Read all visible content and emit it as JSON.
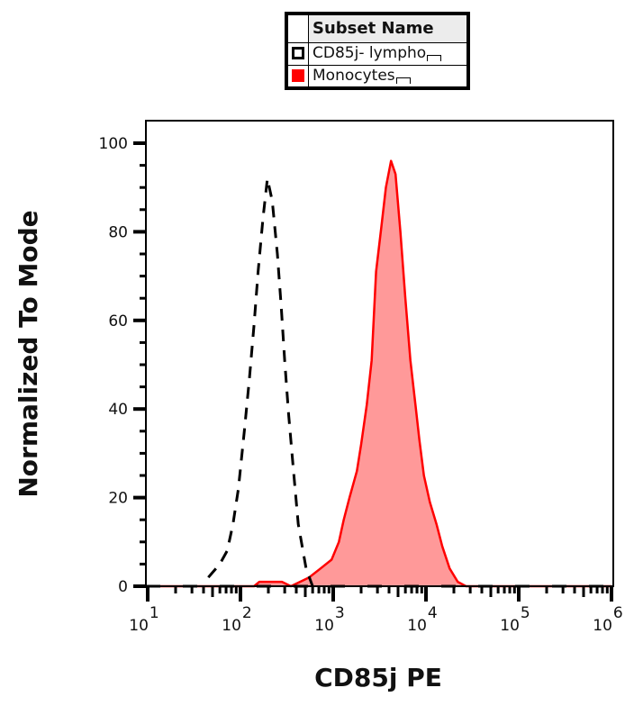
{
  "legend": {
    "header": "Subset Name",
    "items": [
      {
        "label": "CD85j- lympho",
        "swatch": "hollow-black",
        "color": "#000000"
      },
      {
        "label": "Monocytes",
        "swatch": "solid-red",
        "color": "#ff0000"
      }
    ]
  },
  "axes": {
    "xlabel": "CD85j PE",
    "ylabel": "Normalized To Mode",
    "x_ticks": [
      {
        "base": "10",
        "exp": "1"
      },
      {
        "base": "10",
        "exp": "2"
      },
      {
        "base": "10",
        "exp": "3"
      },
      {
        "base": "10",
        "exp": "4"
      },
      {
        "base": "10",
        "exp": "5"
      },
      {
        "base": "10",
        "exp": "6"
      }
    ],
    "y_ticks": [
      "0",
      "20",
      "40",
      "60",
      "80",
      "100"
    ]
  },
  "colors": {
    "monocytes_line": "#ff0000",
    "monocytes_fill": "#ff9999",
    "lympho_line": "#000000"
  },
  "chart_data": {
    "type": "area",
    "title": "",
    "xlabel": "CD85j PE",
    "ylabel": "Normalized To Mode",
    "xscale": "log",
    "xlim": [
      10,
      1000000
    ],
    "ylim": [
      0,
      100
    ],
    "grid": false,
    "legend_position": "top-center",
    "series": [
      {
        "name": "CD85j- lympho",
        "style": "dashed black line, unfilled",
        "x": [
          45,
          60,
          72,
          83,
          95,
          110,
          125,
          140,
          155,
          175,
          195,
          220,
          250,
          275,
          300,
          330,
          370,
          420,
          510,
          600
        ],
        "y": [
          2,
          5,
          8,
          14,
          22,
          35,
          47,
          59,
          71,
          83,
          92,
          87,
          75,
          63,
          51,
          39,
          27,
          14,
          4,
          0
        ]
      },
      {
        "name": "Monocytes",
        "style": "solid red line, light red fill",
        "x": [
          10,
          140,
          160,
          280,
          350,
          550,
          730,
          960,
          1150,
          1300,
          1500,
          1800,
          2000,
          2300,
          2600,
          2900,
          3300,
          3700,
          4200,
          4700,
          5300,
          6000,
          6800,
          7700,
          8500,
          9500,
          11000,
          13000,
          15000,
          18000,
          22000,
          27000,
          33000,
          1000000
        ],
        "y": [
          0,
          0,
          1,
          1,
          0,
          2,
          4,
          6,
          10,
          15,
          20,
          26,
          32,
          41,
          51,
          71,
          81,
          90,
          96,
          93,
          80,
          65,
          51,
          41,
          33,
          25,
          19,
          14,
          9,
          4,
          1,
          0,
          0,
          0
        ]
      }
    ]
  }
}
